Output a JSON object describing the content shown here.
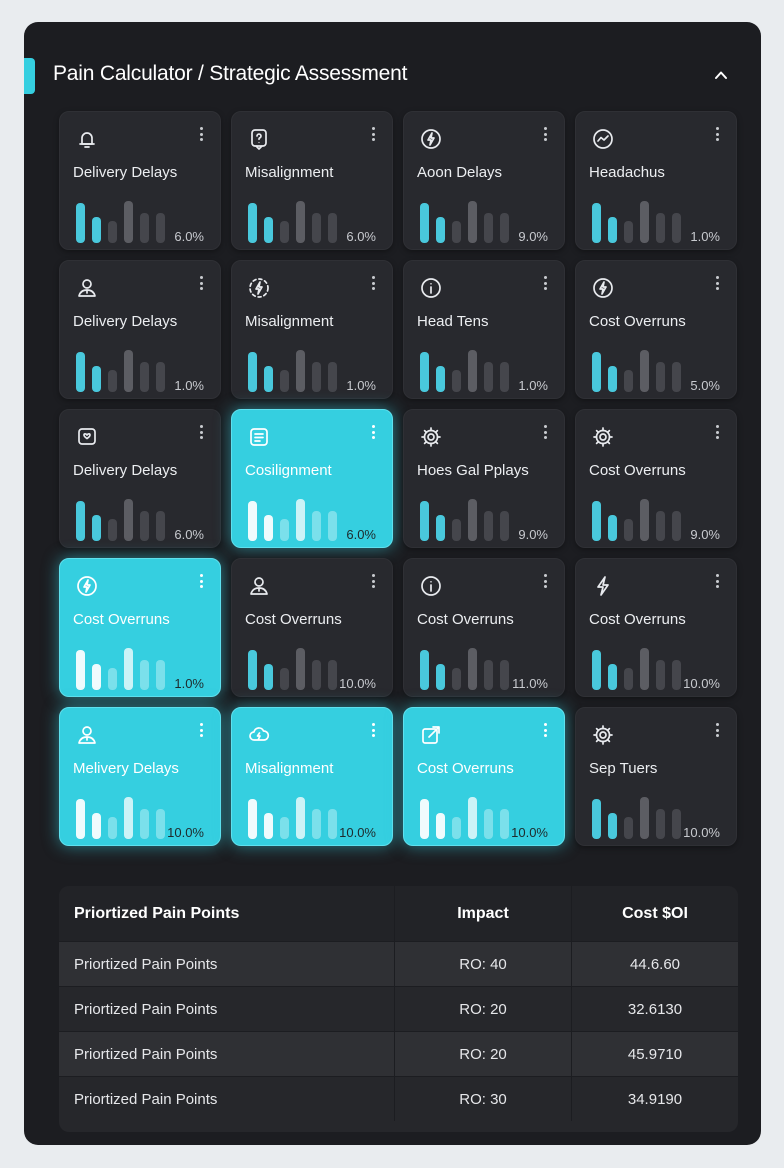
{
  "header": {
    "title": "Pain Calculator / Strategic Assessment",
    "collapse_icon": "chevron-up-icon"
  },
  "colors": {
    "accent": "#35cfe0",
    "panel": "#1c1d21",
    "card": "#28292e",
    "bar_teal": "#49c8dc",
    "bar_dim": "#45464c",
    "bar_mid": "#5c5d63"
  },
  "cards": [
    {
      "label": "Delivery Delays",
      "value": "6.0%",
      "icon": "bell-icon",
      "active": false
    },
    {
      "label": "Misalignment",
      "value": "6.0%",
      "icon": "question-badge-icon",
      "active": false
    },
    {
      "label": "Aoon Delays",
      "value": "9.0%",
      "icon": "lightning-circle-icon",
      "active": false
    },
    {
      "label": "Headachus",
      "value": "1.0%",
      "icon": "trend-circle-icon",
      "active": false
    },
    {
      "label": "Delivery Delays",
      "value": "1.0%",
      "icon": "user-alert-icon",
      "active": false
    },
    {
      "label": "Misalignment",
      "value": "1.0%",
      "icon": "lightning-dashed-icon",
      "active": false
    },
    {
      "label": "Head Tens",
      "value": "1.0%",
      "icon": "info-circle-icon",
      "active": false
    },
    {
      "label": "Cost Overruns",
      "value": "5.0%",
      "icon": "lightning-circle-icon",
      "active": false
    },
    {
      "label": "Delivery Delays",
      "value": "6.0%",
      "icon": "chat-square-icon",
      "active": false
    },
    {
      "label": "Cosilignment",
      "value": "6.0%",
      "icon": "list-square-icon",
      "active": true
    },
    {
      "label": "Hoes Gal Pplays",
      "value": "9.0%",
      "icon": "gear-icon",
      "active": false
    },
    {
      "label": "Cost Overruns",
      "value": "9.0%",
      "icon": "gear-icon",
      "active": false
    },
    {
      "label": "Cost Overruns",
      "value": "1.0%",
      "icon": "lightning-circle-icon",
      "active": true
    },
    {
      "label": "Cost Overruns",
      "value": "10.0%",
      "icon": "user-alert-icon",
      "active": false
    },
    {
      "label": "Cost Overruns",
      "value": "11.0%",
      "icon": "info-circle-icon",
      "active": false
    },
    {
      "label": "Cost Overruns",
      "value": "10.0%",
      "icon": "lightning-icon",
      "active": false
    },
    {
      "label": "Melivery Delays",
      "value": "10.0%",
      "icon": "user-alert-icon",
      "active": true
    },
    {
      "label": "Misalignment",
      "value": "10.0%",
      "icon": "cloud-lightning-icon",
      "active": true
    },
    {
      "label": "Cost Overruns",
      "value": "10.0%",
      "icon": "external-edit-icon",
      "active": true
    },
    {
      "label": "Sep Tuers",
      "value": "10.0%",
      "icon": "gear-icon",
      "active": false
    }
  ],
  "table": {
    "headers": [
      "Priortized Pain Points",
      "Impact",
      "Cost $OI"
    ],
    "rows": [
      [
        "Priortized Pain Points",
        "RO: 40",
        "44.6.60"
      ],
      [
        "Priortized Pain Points",
        "RO: 20",
        "32.6130"
      ],
      [
        "Priortized Pain Points",
        "RO: 20",
        "45.9710"
      ],
      [
        "Priortized Pain Points",
        "RO: 30",
        "34.9190"
      ]
    ]
  }
}
